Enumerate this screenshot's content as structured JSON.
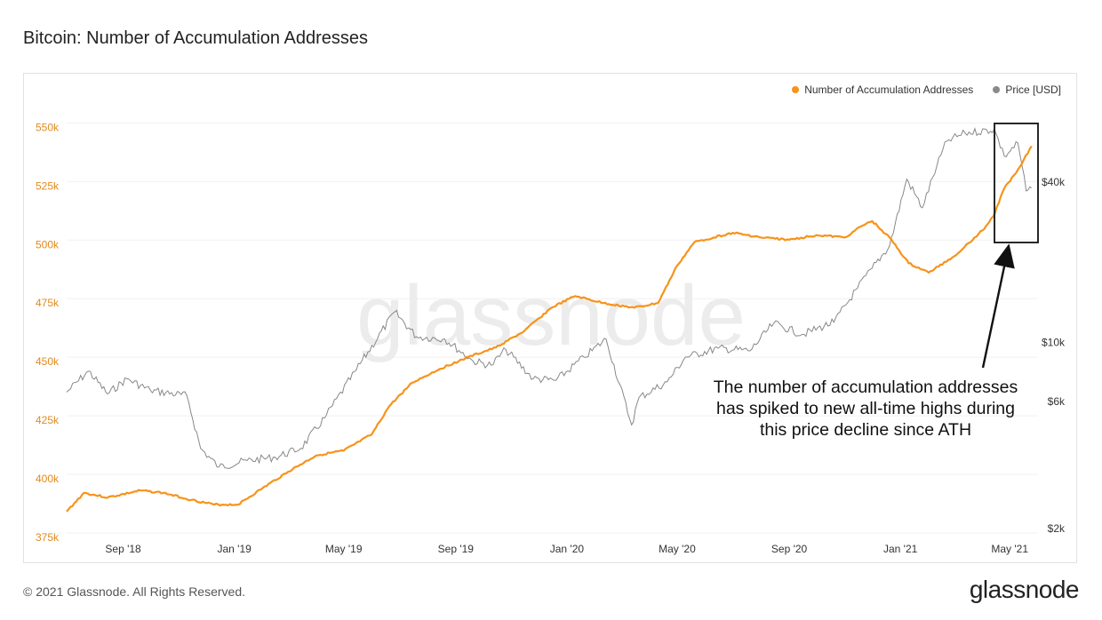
{
  "title": "Bitcoin: Number of Accumulation Addresses",
  "footer": {
    "copyright": "© 2021 Glassnode. All Rights Reserved.",
    "logo": "glassnode"
  },
  "watermark": "glassnode",
  "colors": {
    "addresses": "#f7931a",
    "price": "#888888",
    "left_axis_text": "#e08a1e",
    "right_axis_text": "#333333"
  },
  "annotation": {
    "lines": [
      "The number of accumulation addresses",
      "has spiked to new all-time highs during",
      "this price decline since ATH"
    ]
  },
  "chart_data": {
    "type": "line",
    "title": "Bitcoin: Number of Accumulation Addresses",
    "legend_position": "top-right",
    "grid": true,
    "x_ticks": [
      "Sep '18",
      "Jan '19",
      "May '19",
      "Sep '19",
      "Jan '20",
      "May '20",
      "Sep '20",
      "Jan '21",
      "May '21"
    ],
    "left_axis": {
      "ticks": [
        "375k",
        "400k",
        "425k",
        "450k",
        "475k",
        "500k",
        "525k",
        "550k"
      ],
      "ylim": [
        375000,
        560000
      ]
    },
    "right_axis": {
      "ticks": [
        "$2k",
        "$6k",
        "$10k",
        "$40k"
      ],
      "scale": "log",
      "ylim_usd": [
        2000,
        70000
      ]
    },
    "series": [
      {
        "name": "Number of Accumulation Addresses",
        "axis": "left",
        "x": [
          "2018-07-01",
          "2018-07-20",
          "2018-08-15",
          "2018-09-20",
          "2018-10-15",
          "2018-11-15",
          "2018-12-10",
          "2019-01-05",
          "2019-02-01",
          "2019-03-01",
          "2019-04-01",
          "2019-05-01",
          "2019-06-01",
          "2019-06-20",
          "2019-07-15",
          "2019-08-15",
          "2019-09-15",
          "2019-10-15",
          "2019-11-15",
          "2019-12-15",
          "2020-01-10",
          "2020-02-10",
          "2020-03-15",
          "2020-04-10",
          "2020-05-01",
          "2020-05-20",
          "2020-06-10",
          "2020-07-01",
          "2020-08-01",
          "2020-09-01",
          "2020-10-01",
          "2020-11-01",
          "2020-11-20",
          "2020-12-01",
          "2020-12-20",
          "2021-01-10",
          "2021-02-01",
          "2021-03-01",
          "2021-04-01",
          "2021-04-13",
          "2021-04-25",
          "2021-05-10",
          "2021-05-25"
        ],
        "values": [
          386000,
          394000,
          392000,
          395000,
          394000,
          391000,
          389000,
          389000,
          396000,
          403000,
          410000,
          412000,
          419000,
          431000,
          441000,
          447000,
          452000,
          456000,
          463000,
          473000,
          478000,
          475000,
          473000,
          475000,
          491000,
          501000,
          503000,
          505000,
          503000,
          502000,
          504000,
          503000,
          508000,
          510000,
          503000,
          492000,
          488000,
          495000,
          506000,
          512000,
          524000,
          532000,
          542000
        ]
      },
      {
        "name": "Price [USD]",
        "axis": "right",
        "x": [
          "2018-07-01",
          "2018-07-25",
          "2018-08-15",
          "2018-09-05",
          "2018-10-01",
          "2018-11-10",
          "2018-11-25",
          "2018-12-15",
          "2019-01-15",
          "2019-02-15",
          "2019-03-15",
          "2019-04-10",
          "2019-05-15",
          "2019-06-26",
          "2019-07-20",
          "2019-08-20",
          "2019-09-20",
          "2019-10-10",
          "2019-10-26",
          "2019-11-25",
          "2019-12-20",
          "2020-01-20",
          "2020-02-13",
          "2020-03-12",
          "2020-03-20",
          "2020-04-20",
          "2020-05-10",
          "2020-06-15",
          "2020-07-20",
          "2020-08-15",
          "2020-09-15",
          "2020-10-20",
          "2020-11-15",
          "2020-12-01",
          "2020-12-20",
          "2021-01-08",
          "2021-01-25",
          "2021-02-10",
          "2021-02-21",
          "2021-03-13",
          "2021-04-14",
          "2021-04-25",
          "2021-05-10",
          "2021-05-19",
          "2021-05-25"
        ],
        "values": [
          6500,
          7800,
          6400,
          7300,
          6600,
          6300,
          4000,
          3400,
          3600,
          3700,
          4000,
          5200,
          7900,
          13000,
          10500,
          10300,
          8500,
          8200,
          9400,
          7300,
          7200,
          8800,
          10300,
          4900,
          6200,
          7100,
          8800,
          9500,
          9300,
          11800,
          10700,
          11900,
          16000,
          19000,
          23000,
          41000,
          32000,
          46000,
          57000,
          61000,
          63000,
          50000,
          56000,
          37000,
          38000
        ]
      }
    ]
  }
}
